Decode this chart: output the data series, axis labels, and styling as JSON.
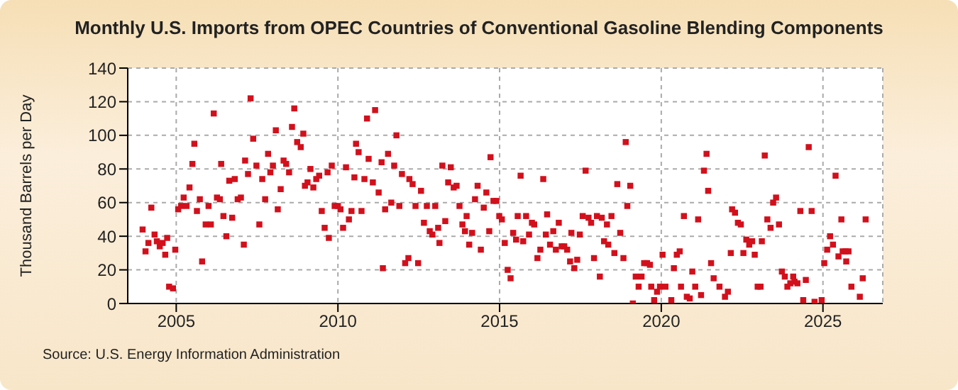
{
  "chart_data": {
    "type": "scatter",
    "title": "Monthly U.S. Imports from OPEC Countries of Conventional Gasoline Blending Components",
    "ylabel": "Thousand Barrels per Day",
    "annotations": [
      "Source: U.S. Energy Information Administration"
    ],
    "x": [
      2003.96,
      2004.05,
      2004.14,
      2004.23,
      2004.33,
      2004.4,
      2004.49,
      2004.58,
      2004.66,
      2004.72,
      2004.78,
      2004.9,
      2004.97,
      2005.06,
      2005.15,
      2005.23,
      2005.32,
      2005.41,
      2005.5,
      2005.56,
      2005.64,
      2005.73,
      2005.8,
      2005.91,
      2006.0,
      2006.07,
      2006.16,
      2006.26,
      2006.35,
      2006.39,
      2006.46,
      2006.55,
      2006.64,
      2006.73,
      2006.81,
      2006.9,
      2007.0,
      2007.09,
      2007.13,
      2007.22,
      2007.3,
      2007.38,
      2007.48,
      2007.57,
      2007.66,
      2007.75,
      2007.84,
      2007.91,
      2007.99,
      2008.08,
      2008.14,
      2008.23,
      2008.32,
      2008.4,
      2008.49,
      2008.58,
      2008.65,
      2008.74,
      2008.85,
      2008.93,
      2008.98,
      2009.06,
      2009.15,
      2009.24,
      2009.33,
      2009.42,
      2009.5,
      2009.59,
      2009.68,
      2009.72,
      2009.81,
      2009.9,
      2010.0,
      2010.08,
      2010.16,
      2010.25,
      2010.34,
      2010.42,
      2010.51,
      2010.56,
      2010.64,
      2010.73,
      2010.82,
      2010.9,
      2010.95,
      2011.08,
      2011.15,
      2011.26,
      2011.35,
      2011.39,
      2011.46,
      2011.55,
      2011.65,
      2011.74,
      2011.81,
      2011.9,
      2011.98,
      2012.08,
      2012.18,
      2012.21,
      2012.31,
      2012.4,
      2012.48,
      2012.57,
      2012.66,
      2012.75,
      2012.84,
      2012.92,
      2013.01,
      2013.1,
      2013.14,
      2013.23,
      2013.32,
      2013.41,
      2013.49,
      2013.58,
      2013.67,
      2013.76,
      2013.85,
      2013.93,
      2013.98,
      2014.06,
      2014.15,
      2014.24,
      2014.32,
      2014.42,
      2014.51,
      2014.59,
      2014.68,
      2014.72,
      2014.81,
      2014.9,
      2014.99,
      2015.07,
      2015.16,
      2015.25,
      2015.34,
      2015.42,
      2015.51,
      2015.56,
      2015.65,
      2015.73,
      2015.82,
      2015.91,
      2016.0,
      2016.07,
      2016.17,
      2016.26,
      2016.35,
      2016.43,
      2016.47,
      2016.56,
      2016.66,
      2016.74,
      2016.83,
      2016.92,
      2017.0,
      2017.09,
      2017.18,
      2017.22,
      2017.31,
      2017.4,
      2017.48,
      2017.57,
      2017.66,
      2017.75,
      2017.83,
      2017.92,
      2018.01,
      2018.1,
      2018.16,
      2018.23,
      2018.32,
      2018.36,
      2018.46,
      2018.55,
      2018.64,
      2018.73,
      2018.83,
      2018.9,
      2018.95,
      2019.04,
      2019.12,
      2019.21,
      2019.3,
      2019.39,
      2019.47,
      2019.56,
      2019.65,
      2019.69,
      2019.78,
      2019.87,
      2019.96,
      2020.04,
      2020.13,
      2020.31,
      2020.39,
      2020.48,
      2020.57,
      2020.61,
      2020.7,
      2020.79,
      2020.88,
      2020.96,
      2021.05,
      2021.14,
      2021.23,
      2021.32,
      2021.4,
      2021.45,
      2021.54,
      2021.62,
      2021.8,
      2021.97,
      2022.06,
      2022.15,
      2022.19,
      2022.28,
      2022.37,
      2022.46,
      2022.54,
      2022.63,
      2022.72,
      2022.81,
      2022.89,
      2022.98,
      2023.07,
      2023.11,
      2023.2,
      2023.28,
      2023.38,
      2023.46,
      2023.55,
      2023.64,
      2023.73,
      2023.82,
      2023.9,
      2023.99,
      2024.08,
      2024.12,
      2024.21,
      2024.3,
      2024.39,
      2024.47,
      2024.56,
      2024.65,
      2024.74,
      2024.96,
      2025.04,
      2025.13,
      2025.22,
      2025.31,
      2025.39,
      2025.48,
      2025.57,
      2025.61,
      2025.7,
      2025.72,
      2025.79,
      2025.88,
      2026.14,
      2026.23,
      2026.32
    ],
    "values": [
      44,
      31,
      36,
      57,
      41,
      37,
      34,
      36,
      29,
      39,
      10,
      9,
      32,
      56,
      58,
      63,
      58,
      69,
      83,
      95,
      55,
      62,
      25,
      47,
      58,
      47,
      113,
      63,
      62,
      83,
      52,
      40,
      73,
      51,
      74,
      62,
      63,
      35,
      85,
      77,
      122,
      98,
      82,
      47,
      74,
      62,
      89,
      78,
      82,
      103,
      56,
      68,
      85,
      83,
      78,
      105,
      116,
      96,
      93,
      101,
      70,
      72,
      80,
      69,
      74,
      76,
      55,
      45,
      78,
      39,
      82,
      58,
      58,
      56,
      45,
      81,
      50,
      55,
      75,
      95,
      90,
      55,
      74,
      110,
      86,
      72,
      115,
      66,
      84,
      21,
      56,
      89,
      60,
      82,
      100,
      58,
      77,
      24,
      27,
      74,
      71,
      58,
      24,
      67,
      48,
      58,
      43,
      41,
      58,
      45,
      36,
      82,
      49,
      72,
      81,
      69,
      70,
      58,
      47,
      43,
      52,
      35,
      42,
      62,
      70,
      32,
      57,
      66,
      43,
      87,
      61,
      61,
      52,
      50,
      36,
      20,
      15,
      42,
      38,
      52,
      76,
      37,
      52,
      41,
      48,
      47,
      27,
      32,
      74,
      41,
      53,
      35,
      43,
      32,
      48,
      34,
      34,
      32,
      25,
      42,
      21,
      26,
      41,
      52,
      79,
      51,
      48,
      27,
      52,
      16,
      51,
      37,
      47,
      35,
      52,
      30,
      71,
      42,
      27,
      96,
      58,
      70,
      0,
      16,
      10,
      16,
      24,
      24,
      23,
      10,
      2,
      7,
      10,
      29,
      10,
      2,
      21,
      29,
      31,
      10,
      52,
      4,
      3,
      19,
      10,
      50,
      5,
      79,
      89,
      67,
      24,
      15,
      10,
      4,
      7,
      30,
      56,
      54,
      48,
      47,
      30,
      38,
      35,
      37,
      29,
      10,
      10,
      37,
      88,
      50,
      45,
      60,
      63,
      47,
      19,
      16,
      10,
      12,
      16,
      13,
      12,
      55,
      2,
      14,
      93,
      55,
      1,
      2,
      24,
      32,
      40,
      35,
      76,
      28,
      50,
      31,
      31,
      25,
      31,
      10,
      4,
      15,
      50
    ],
    "color": "#d2101c",
    "marker": "square",
    "xlim": [
      2003.5,
      2026.85
    ],
    "xticks": [
      2005,
      2010,
      2015,
      2020,
      2025
    ],
    "ylim": [
      0,
      140
    ],
    "yticks": [
      0,
      20,
      40,
      60,
      80,
      100,
      120,
      140
    ],
    "grid": true
  }
}
